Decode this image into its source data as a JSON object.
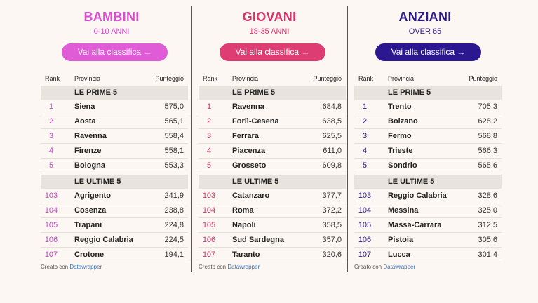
{
  "header_labels": {
    "rank": "Rank",
    "provincia": "Provincia",
    "punteggio": "Punteggio"
  },
  "section_labels": {
    "top": "LE PRIME 5",
    "bottom": "LE ULTIME 5"
  },
  "footer": {
    "text": "Creato con ",
    "link": "Datawrapper"
  },
  "columns": [
    {
      "title": "BAMBINI",
      "subtitle": "0-10 ANNI",
      "button": "Vai alla classifica →",
      "colors": {
        "title": "#d94fcf",
        "button": "#e05bd6",
        "rank": "#c24ac6"
      },
      "top": [
        {
          "rank": "1",
          "provincia": "Siena",
          "score": "575,0"
        },
        {
          "rank": "2",
          "provincia": "Aosta",
          "score": "565,1"
        },
        {
          "rank": "3",
          "provincia": "Ravenna",
          "score": "558,4"
        },
        {
          "rank": "4",
          "provincia": "Firenze",
          "score": "558,1"
        },
        {
          "rank": "5",
          "provincia": "Bologna",
          "score": "553,3"
        }
      ],
      "bottom": [
        {
          "rank": "103",
          "provincia": "Agrigento",
          "score": "241,9"
        },
        {
          "rank": "104",
          "provincia": "Cosenza",
          "score": "238,8"
        },
        {
          "rank": "105",
          "provincia": "Trapani",
          "score": "224,8"
        },
        {
          "rank": "106",
          "provincia": "Reggio Calabria",
          "score": "224,5"
        },
        {
          "rank": "107",
          "provincia": "Crotone",
          "score": "194,1"
        }
      ]
    },
    {
      "title": "GIOVANI",
      "subtitle": "18-35 ANNI",
      "button": "Vai alla classifica →",
      "colors": {
        "title": "#d6336b",
        "button": "#dd3d72",
        "rank": "#c8356b"
      },
      "top": [
        {
          "rank": "1",
          "provincia": "Ravenna",
          "score": "684,8"
        },
        {
          "rank": "2",
          "provincia": "Forlì-Cesena",
          "score": "638,5"
        },
        {
          "rank": "3",
          "provincia": "Ferrara",
          "score": "625,5"
        },
        {
          "rank": "4",
          "provincia": "Piacenza",
          "score": "611,0"
        },
        {
          "rank": "5",
          "provincia": "Grosseto",
          "score": "609,8"
        }
      ],
      "bottom": [
        {
          "rank": "103",
          "provincia": "Catanzaro",
          "score": "377,7"
        },
        {
          "rank": "104",
          "provincia": "Roma",
          "score": "372,2"
        },
        {
          "rank": "105",
          "provincia": "Napoli",
          "score": "358,5"
        },
        {
          "rank": "106",
          "provincia": "Sud Sardegna",
          "score": "357,0"
        },
        {
          "rank": "107",
          "provincia": "Taranto",
          "score": "320,6"
        }
      ]
    },
    {
      "title": "ANZIANI",
      "subtitle": "OVER 65",
      "button": "Vai alla classifica →",
      "colors": {
        "title": "#2a1a8a",
        "button": "#2b1790",
        "rank": "#2a1a8a"
      },
      "top": [
        {
          "rank": "1",
          "provincia": "Trento",
          "score": "705,3"
        },
        {
          "rank": "2",
          "provincia": "Bolzano",
          "score": "628,2"
        },
        {
          "rank": "3",
          "provincia": "Fermo",
          "score": "568,8"
        },
        {
          "rank": "4",
          "provincia": "Trieste",
          "score": "566,3"
        },
        {
          "rank": "5",
          "provincia": "Sondrio",
          "score": "565,6"
        }
      ],
      "bottom": [
        {
          "rank": "103",
          "provincia": "Reggio Calabria",
          "score": "328,6"
        },
        {
          "rank": "104",
          "provincia": "Messina",
          "score": "325,0"
        },
        {
          "rank": "105",
          "provincia": "Massa-Carrara",
          "score": "312,5"
        },
        {
          "rank": "106",
          "provincia": "Pistoia",
          "score": "305,6"
        },
        {
          "rank": "107",
          "provincia": "Lucca",
          "score": "301,4"
        }
      ]
    }
  ]
}
